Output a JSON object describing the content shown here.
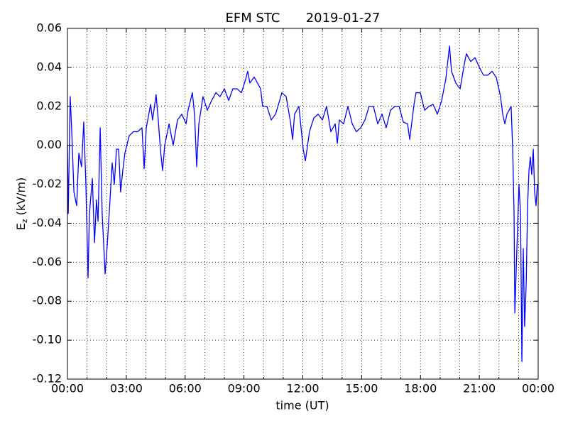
{
  "chart_data": {
    "type": "line",
    "title": "EFM STC",
    "subtitle": "2019-01-27",
    "x_label": "time (UT)",
    "y_label": {
      "symbol": "E",
      "subscript": "z",
      "unit": "(kV/m)"
    },
    "xlim": [
      0,
      24
    ],
    "xticks": [
      {
        "value": 0,
        "label": "00:00"
      },
      {
        "value": 3,
        "label": "03:00"
      },
      {
        "value": 6,
        "label": "06:00"
      },
      {
        "value": 9,
        "label": "09:00"
      },
      {
        "value": 12,
        "label": "12:00"
      },
      {
        "value": 15,
        "label": "15:00"
      },
      {
        "value": 18,
        "label": "18:00"
      },
      {
        "value": 21,
        "label": "21:00"
      },
      {
        "value": 24,
        "label": "00:00"
      }
    ],
    "x_minor_ticks": [
      1,
      2,
      4,
      5,
      7,
      8,
      10,
      11,
      13,
      14,
      16,
      17,
      19,
      20,
      22,
      23
    ],
    "ylim": [
      -0.12,
      0.06
    ],
    "yticks": [
      -0.12,
      {
        "value": -0.1,
        "label": "-0.10"
      },
      -0.08,
      -0.06,
      -0.04,
      -0.02,
      {
        "value": 0,
        "label": "0.00"
      },
      0.02,
      0.04,
      0.06
    ],
    "grid": true,
    "series": [
      {
        "name": "Ez",
        "color": "#0000ff",
        "x": [
          0,
          0.04,
          0.14,
          0.22,
          0.33,
          0.47,
          0.58,
          0.72,
          0.83,
          0.94,
          1.05,
          1.12,
          1.27,
          1.38,
          1.48,
          1.56,
          1.67,
          1.77,
          1.92,
          2.03,
          2.17,
          2.28,
          2.39,
          2.5,
          2.61,
          2.71,
          2.82,
          2.93,
          3.15,
          3.37,
          3.58,
          3.8,
          3.91,
          4.02,
          4.24,
          4.34,
          4.52,
          4.63,
          4.74,
          4.85,
          4.96,
          5.18,
          5.39,
          5.61,
          5.83,
          6.05,
          6.15,
          6.37,
          6.48,
          6.59,
          6.7,
          6.91,
          7.13,
          7.35,
          7.57,
          7.78,
          8.0,
          8.22,
          8.43,
          8.65,
          8.87,
          9.09,
          9.19,
          9.3,
          9.52,
          9.74,
          9.85,
          9.95,
          10.17,
          10.39,
          10.61,
          10.82,
          10.93,
          11.15,
          11.37,
          11.48,
          11.58,
          11.8,
          12.02,
          12.13,
          12.34,
          12.56,
          12.78,
          13.0,
          13.21,
          13.43,
          13.65,
          13.76,
          13.86,
          14.08,
          14.3,
          14.52,
          14.73,
          14.95,
          15.17,
          15.38,
          15.6,
          15.82,
          16.04,
          16.25,
          16.47,
          16.69,
          16.91,
          17.12,
          17.34,
          17.45,
          17.67,
          17.77,
          17.99,
          18.21,
          18.43,
          18.64,
          18.86,
          19.08,
          19.29,
          19.48,
          19.58,
          19.8,
          20.02,
          20.24,
          20.34,
          20.56,
          20.78,
          21.0,
          21.21,
          21.43,
          21.65,
          21.86,
          22.08,
          22.19,
          22.3,
          22.41,
          22.62,
          22.7,
          22.77,
          22.81,
          22.88,
          22.95,
          23.02,
          23.1,
          23.17,
          23.24,
          23.31,
          23.39,
          23.46,
          23.53,
          23.6,
          23.67,
          23.75,
          23.82,
          23.89,
          23.96
        ],
        "values": [
          0,
          -0.035,
          0.025,
          0.007,
          -0.024,
          -0.031,
          -0.004,
          -0.011,
          0.012,
          -0.02,
          -0.068,
          -0.035,
          -0.017,
          -0.05,
          -0.028,
          -0.039,
          0.009,
          -0.035,
          -0.066,
          -0.051,
          -0.028,
          -0.009,
          -0.02,
          -0.002,
          -0.002,
          -0.024,
          -0.013,
          -0.004,
          0.005,
          0.007,
          0.007,
          0.009,
          -0.012,
          0.009,
          0.021,
          0.013,
          0.026,
          0.013,
          -0.002,
          -0.013,
          0,
          0.011,
          0,
          0.013,
          0.016,
          0.011,
          0.018,
          0.027,
          0.016,
          -0.011,
          0.011,
          0.025,
          0.018,
          0.023,
          0.027,
          0.025,
          0.029,
          0.023,
          0.029,
          0.029,
          0.027,
          0.034,
          0.038,
          0.032,
          0.035,
          0.031,
          0.029,
          0.02,
          0.02,
          0.013,
          0.016,
          0.023,
          0.027,
          0.025,
          0.012,
          0.003,
          0.016,
          0.02,
          -0.002,
          -0.008,
          0.007,
          0.014,
          0.016,
          0.013,
          0.02,
          0.007,
          0.011,
          0.001,
          0.013,
          0.011,
          0.02,
          0.011,
          0.007,
          0.009,
          0.013,
          0.02,
          0.02,
          0.011,
          0.016,
          0.009,
          0.018,
          0.02,
          0.02,
          0.012,
          0.011,
          0.003,
          0.021,
          0.027,
          0.027,
          0.018,
          0.02,
          0.021,
          0.016,
          0.023,
          0.034,
          0.051,
          0.038,
          0.032,
          0.029,
          0.042,
          0.047,
          0.043,
          0.045,
          0.04,
          0.036,
          0.036,
          0.038,
          0.035,
          0.025,
          0.016,
          0.011,
          0.016,
          0.02,
          -0.002,
          -0.035,
          -0.086,
          -0.064,
          -0.042,
          -0.02,
          -0.035,
          -0.111,
          -0.053,
          -0.093,
          -0.071,
          -0.031,
          -0.013,
          -0.006,
          -0.015,
          -0.002,
          -0.024,
          -0.031,
          -0.02
        ]
      }
    ]
  }
}
